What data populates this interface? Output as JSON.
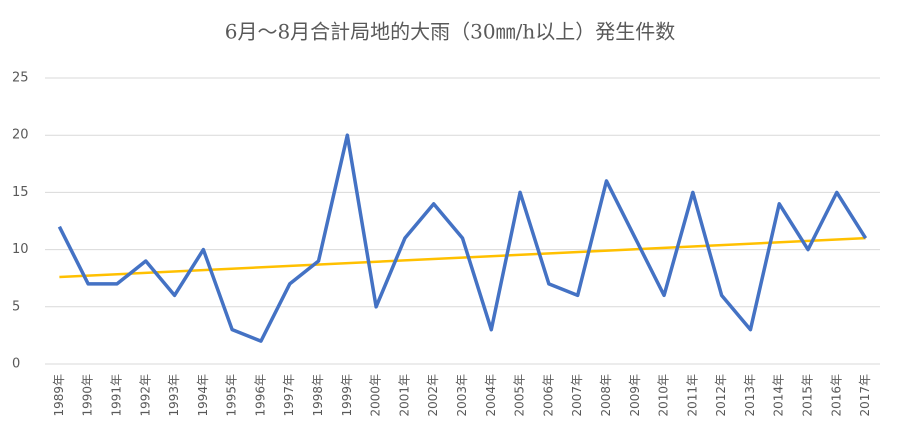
{
  "chart_data": {
    "type": "line",
    "title": "6月～8月合計局地的大雨（30㎜/h以上）発生件数",
    "categories": [
      "1989年",
      "1990年",
      "1991年",
      "1992年",
      "1993年",
      "1994年",
      "1995年",
      "1996年",
      "1997年",
      "1998年",
      "1999年",
      "2000年",
      "2001年",
      "2002年",
      "2003年",
      "2004年",
      "2005年",
      "2006年",
      "2007年",
      "2008年",
      "2009年",
      "2010年",
      "2011年",
      "2012年",
      "2013年",
      "2014年",
      "2015年",
      "2016年",
      "2017年"
    ],
    "values": [
      12,
      7,
      7,
      9,
      6,
      10,
      3,
      2,
      7,
      9,
      20,
      5,
      11,
      14,
      11,
      3,
      15,
      7,
      6,
      16,
      11,
      6,
      15,
      6,
      3,
      14,
      10,
      15,
      11
    ],
    "color": "#4472c4",
    "trendline": {
      "color": "#ffc000",
      "values": [
        7.6,
        11.0
      ]
    },
    "ylim": [
      0,
      25
    ],
    "yticks": [
      0,
      5,
      10,
      15,
      20,
      25
    ],
    "grid": true
  }
}
